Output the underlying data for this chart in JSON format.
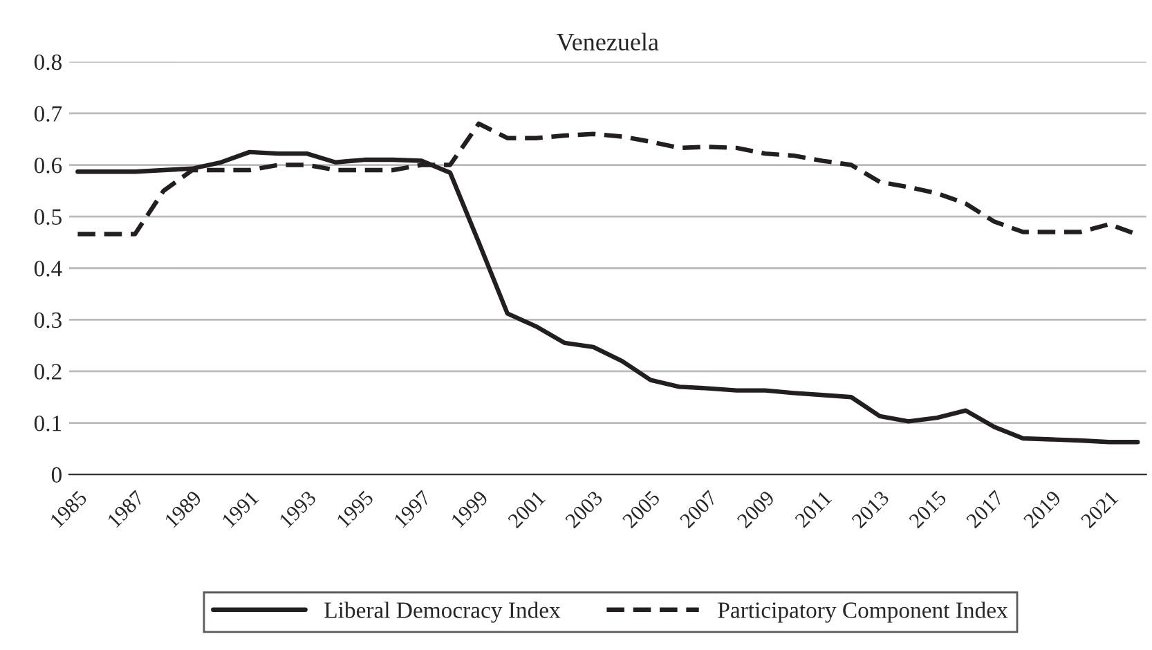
{
  "chart_data": {
    "type": "line",
    "title": "Venezuela",
    "categories": [
      "1985",
      null,
      "1987",
      null,
      "1989",
      null,
      "1991",
      null,
      "1993",
      null,
      "1995",
      null,
      "1997",
      null,
      "1999",
      null,
      "2001",
      null,
      "2003",
      null,
      "2005",
      null,
      "2007",
      null,
      "2009",
      null,
      "2011",
      null,
      "2013",
      null,
      "2015",
      null,
      "2017",
      null,
      "2019",
      null,
      "2021",
      null
    ],
    "series": [
      {
        "name": "Liberal Democracy Index",
        "color": "#231f20",
        "line_style": "solid",
        "values": [
          0.587,
          0.587,
          0.587,
          0.59,
          0.593,
          0.605,
          0.625,
          0.622,
          0.622,
          0.605,
          0.61,
          0.61,
          0.608,
          0.585,
          0.45,
          0.312,
          0.287,
          0.255,
          0.247,
          0.22,
          0.183,
          0.17,
          0.167,
          0.163,
          0.163,
          0.158,
          0.154,
          0.15,
          0.113,
          0.103,
          0.11,
          0.124,
          0.092,
          0.07,
          0.068,
          0.066,
          0.063,
          0.063
        ]
      },
      {
        "name": "Participatory Component Index",
        "color": "#231f20",
        "line_style": "dashed",
        "values": [
          0.466,
          0.466,
          0.466,
          0.55,
          0.59,
          0.59,
          0.59,
          0.6,
          0.6,
          0.59,
          0.59,
          0.59,
          0.6,
          0.6,
          0.68,
          0.652,
          0.652,
          0.657,
          0.66,
          0.655,
          0.645,
          0.633,
          0.635,
          0.633,
          0.622,
          0.618,
          0.608,
          0.6,
          0.567,
          0.557,
          0.545,
          0.525,
          0.49,
          0.47,
          0.47,
          0.47,
          0.485,
          0.465
        ]
      }
    ],
    "ylim": [
      0,
      0.8
    ],
    "yticks": [
      {
        "value": 0,
        "label": "0"
      },
      0.1,
      0.2,
      0.3,
      0.4,
      0.5,
      0.6,
      0.7,
      0.8
    ],
    "grid": "y",
    "legend": "bottom",
    "marker": "none"
  }
}
